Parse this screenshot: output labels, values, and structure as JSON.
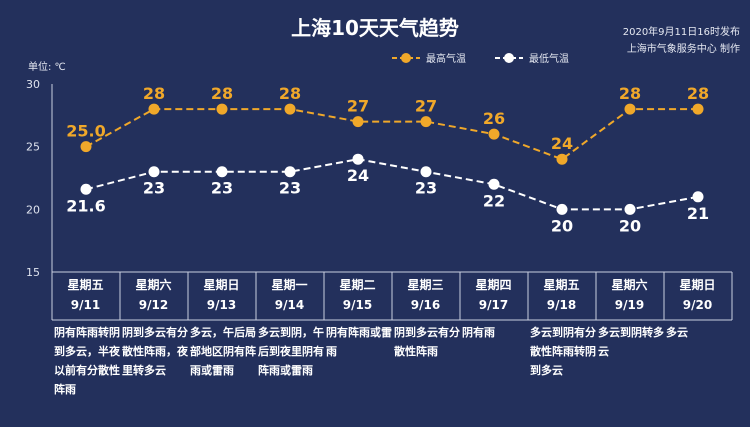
{
  "title": "上海10天天气趋势",
  "publish_time": "2020年9月11日16时发布",
  "publisher": "上海市气象服务中心 制作",
  "unit_label": "单位: ℃",
  "colors": {
    "high": "#f0a82a",
    "low": "#ffffff",
    "background": "#23305c"
  },
  "chart_data": {
    "type": "line",
    "ylim": [
      15,
      30
    ],
    "yticks": [
      15,
      20,
      25,
      30
    ],
    "series": [
      {
        "name": "最高气温",
        "values": [
          25.0,
          28,
          28,
          28,
          27,
          27,
          26,
          24,
          28,
          28
        ],
        "labels": [
          "25.0",
          "28",
          "28",
          "28",
          "27",
          "27",
          "26",
          "24",
          "28",
          "28"
        ]
      },
      {
        "name": "最低气温",
        "values": [
          21.6,
          23,
          23,
          23,
          24,
          23,
          22,
          20,
          20,
          21
        ],
        "labels": [
          "21.6",
          "23",
          "23",
          "23",
          "24",
          "23",
          "22",
          "20",
          "20",
          "21"
        ]
      }
    ]
  },
  "days": [
    {
      "weekday": "星期五",
      "date": "9/11",
      "weather": "阴有阵雨转阴到多云，半夜以前有分散性阵雨"
    },
    {
      "weekday": "星期六",
      "date": "9/12",
      "weather": "阴到多云有分散性阵雨，夜里转多云"
    },
    {
      "weekday": "星期日",
      "date": "9/13",
      "weather": "多云，午后局部地区阴有阵雨或雷雨"
    },
    {
      "weekday": "星期一",
      "date": "9/14",
      "weather": "多云到阴，午后到夜里阴有阵雨或雷雨"
    },
    {
      "weekday": "星期二",
      "date": "9/15",
      "weather": "阴有阵雨或雷雨"
    },
    {
      "weekday": "星期三",
      "date": "9/16",
      "weather": "阴到多云有分散性阵雨"
    },
    {
      "weekday": "星期四",
      "date": "9/17",
      "weather": "阴有雨"
    },
    {
      "weekday": "星期五",
      "date": "9/18",
      "weather": "多云到阴有分散性阵雨转阴到多云"
    },
    {
      "weekday": "星期六",
      "date": "9/19",
      "weather": "多云到阴转多云"
    },
    {
      "weekday": "星期日",
      "date": "9/20",
      "weather": "多云"
    }
  ]
}
